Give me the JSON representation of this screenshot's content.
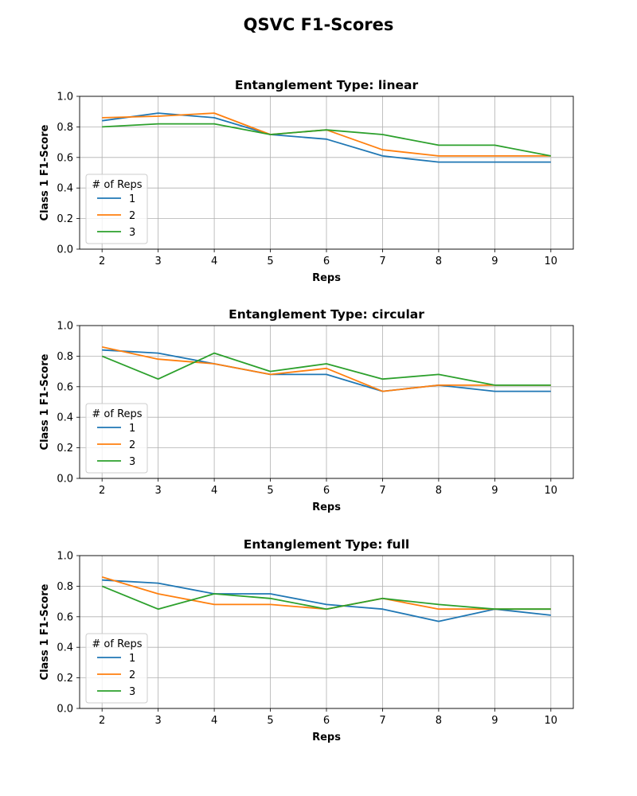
{
  "figure_title": "QSVC F1-Scores",
  "chart_data": [
    {
      "type": "line",
      "title": "Entanglement Type: linear",
      "xlabel": "Reps",
      "ylabel": "Class 1 F1-Score",
      "x": [
        2,
        3,
        4,
        5,
        6,
        7,
        8,
        9,
        10
      ],
      "xlim": [
        1.6,
        10.4
      ],
      "ylim": [
        0,
        1
      ],
      "yticks": [
        "0.0",
        "0.2",
        "0.4",
        "0.6",
        "0.8",
        "1.0"
      ],
      "xticks": [
        "2",
        "3",
        "4",
        "5",
        "6",
        "7",
        "8",
        "9",
        "10"
      ],
      "grid": true,
      "legend": {
        "title": "# of Reps",
        "placement": "lower-left"
      },
      "series": [
        {
          "name": "1",
          "color": "#1f77b4",
          "values": [
            0.84,
            0.89,
            0.86,
            0.75,
            0.72,
            0.61,
            0.57,
            0.57,
            0.57
          ]
        },
        {
          "name": "2",
          "color": "#ff7f0e",
          "values": [
            0.86,
            0.87,
            0.89,
            0.75,
            0.78,
            0.65,
            0.61,
            0.61,
            0.61
          ]
        },
        {
          "name": "3",
          "color": "#2ca02c",
          "values": [
            0.8,
            0.82,
            0.82,
            0.75,
            0.78,
            0.75,
            0.68,
            0.68,
            0.61
          ]
        }
      ]
    },
    {
      "type": "line",
      "title": "Entanglement Type: circular",
      "xlabel": "Reps",
      "ylabel": "Class 1 F1-Score",
      "x": [
        2,
        3,
        4,
        5,
        6,
        7,
        8,
        9,
        10
      ],
      "xlim": [
        1.6,
        10.4
      ],
      "ylim": [
        0,
        1
      ],
      "yticks": [
        "0.0",
        "0.2",
        "0.4",
        "0.6",
        "0.8",
        "1.0"
      ],
      "xticks": [
        "2",
        "3",
        "4",
        "5",
        "6",
        "7",
        "8",
        "9",
        "10"
      ],
      "grid": true,
      "legend": {
        "title": "# of Reps",
        "placement": "lower-left"
      },
      "series": [
        {
          "name": "1",
          "color": "#1f77b4",
          "values": [
            0.84,
            0.82,
            0.75,
            0.68,
            0.68,
            0.57,
            0.61,
            0.57,
            0.57
          ]
        },
        {
          "name": "2",
          "color": "#ff7f0e",
          "values": [
            0.86,
            0.78,
            0.75,
            0.68,
            0.72,
            0.57,
            0.61,
            0.61,
            0.61
          ]
        },
        {
          "name": "3",
          "color": "#2ca02c",
          "values": [
            0.8,
            0.65,
            0.82,
            0.7,
            0.75,
            0.65,
            0.68,
            0.61,
            0.61
          ]
        }
      ]
    },
    {
      "type": "line",
      "title": "Entanglement Type: full",
      "xlabel": "Reps",
      "ylabel": "Class 1 F1-Score",
      "x": [
        2,
        3,
        4,
        5,
        6,
        7,
        8,
        9,
        10
      ],
      "xlim": [
        1.6,
        10.4
      ],
      "ylim": [
        0,
        1
      ],
      "yticks": [
        "0.0",
        "0.2",
        "0.4",
        "0.6",
        "0.8",
        "1.0"
      ],
      "xticks": [
        "2",
        "3",
        "4",
        "5",
        "6",
        "7",
        "8",
        "9",
        "10"
      ],
      "grid": true,
      "legend": {
        "title": "# of Reps",
        "placement": "lower-left"
      },
      "series": [
        {
          "name": "1",
          "color": "#1f77b4",
          "values": [
            0.84,
            0.82,
            0.75,
            0.75,
            0.68,
            0.65,
            0.57,
            0.65,
            0.61
          ]
        },
        {
          "name": "2",
          "color": "#ff7f0e",
          "values": [
            0.86,
            0.75,
            0.68,
            0.68,
            0.65,
            0.72,
            0.65,
            0.65,
            0.65
          ]
        },
        {
          "name": "3",
          "color": "#2ca02c",
          "values": [
            0.8,
            0.65,
            0.75,
            0.72,
            0.65,
            0.72,
            0.68,
            0.65,
            0.65
          ]
        }
      ]
    }
  ]
}
